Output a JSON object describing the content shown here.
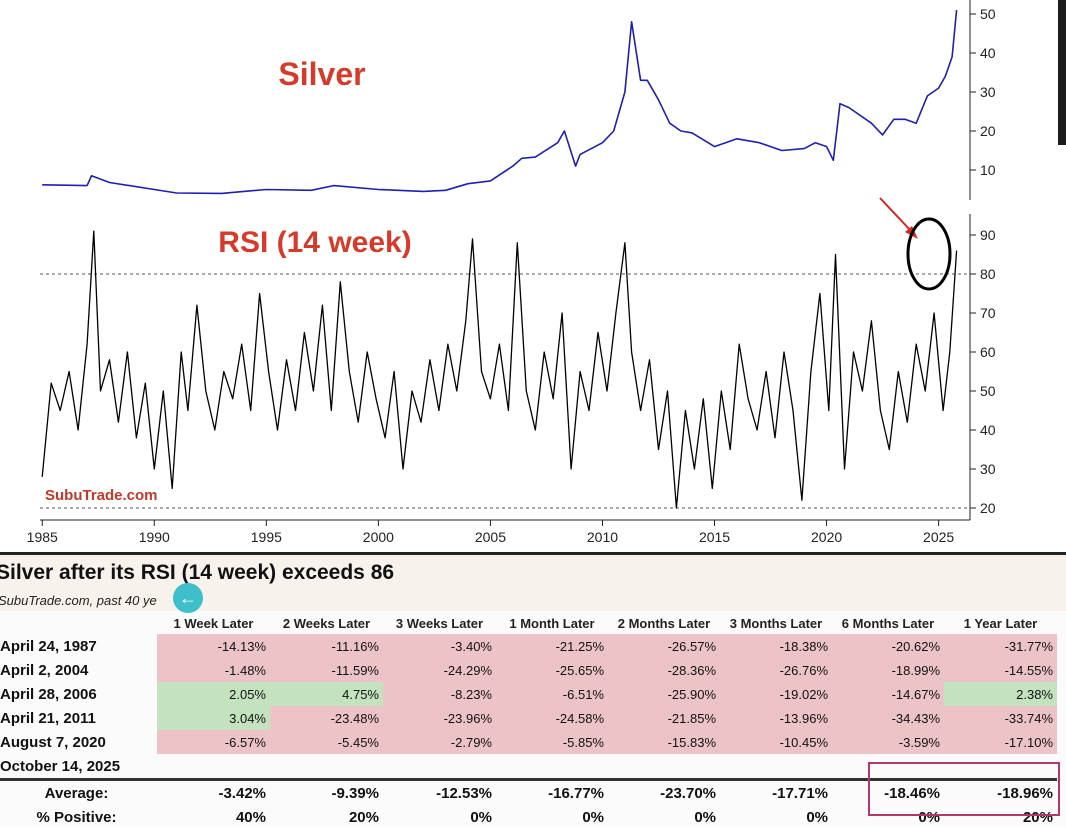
{
  "chart_data": [
    {
      "type": "line",
      "title": "Silver",
      "x_ticks": [
        "1985",
        "1990",
        "1995",
        "2000",
        "2005",
        "2010",
        "2015",
        "2020",
        "2025"
      ],
      "xlim": [
        1984.9,
        2026.4
      ],
      "ylim": [
        2,
        52
      ],
      "y_ticks": [
        10,
        20,
        30,
        40,
        50
      ],
      "series": [
        {
          "color": "#1f1fb0",
          "x": [
            1985,
            1987,
            1987.2,
            1988,
            1990,
            1991,
            1993,
            1995,
            1997,
            1998,
            2000,
            2002,
            2003,
            2004,
            2005,
            2006,
            2006.4,
            2007,
            2008,
            2008.3,
            2008.8,
            2009,
            2010,
            2010.5,
            2011,
            2011.3,
            2011.7,
            2012,
            2012.5,
            2013,
            2013.5,
            2014,
            2015,
            2016,
            2017,
            2018,
            2019,
            2019.5,
            2020,
            2020.3,
            2020.6,
            2021,
            2022,
            2022.5,
            2023,
            2023.5,
            2024,
            2024.5,
            2025,
            2025.3,
            2025.6,
            2025.8
          ],
          "y": [
            6.2,
            6,
            8.5,
            6.8,
            5,
            4.1,
            4,
            5,
            4.8,
            6,
            5,
            4.5,
            4.8,
            6.5,
            7.2,
            11,
            13,
            13.3,
            17,
            20,
            11,
            14,
            17,
            20,
            30,
            48,
            33,
            33,
            28,
            22,
            20,
            19.5,
            16,
            18,
            17,
            15,
            15.5,
            17,
            16,
            12.5,
            27,
            26,
            22,
            19,
            23,
            23,
            22,
            29,
            31,
            34,
            39,
            51
          ]
        }
      ]
    },
    {
      "type": "line",
      "title": "RSI (14 week)",
      "x_ticks": [
        "1985",
        "1990",
        "1995",
        "2000",
        "2005",
        "2010",
        "2015",
        "2020",
        "2025"
      ],
      "xlim": [
        1984.9,
        2026.4
      ],
      "ylim": [
        18,
        92
      ],
      "y_ticks": [
        20,
        30,
        40,
        50,
        60,
        70,
        80,
        90
      ],
      "reference_lines": [
        80,
        20
      ],
      "series": [
        {
          "color": "#000000",
          "x": [
            1985,
            1985.4,
            1985.8,
            1986.2,
            1986.6,
            1987,
            1987.3,
            1987.6,
            1988,
            1988.4,
            1988.8,
            1989.2,
            1989.6,
            1990,
            1990.4,
            1990.8,
            1991.2,
            1991.5,
            1991.9,
            1992.3,
            1992.7,
            1993.1,
            1993.5,
            1993.9,
            1994.3,
            1994.7,
            1995.1,
            1995.5,
            1995.9,
            1996.3,
            1996.7,
            1997.1,
            1997.5,
            1997.9,
            1998.3,
            1998.7,
            1999.1,
            1999.5,
            1999.9,
            2000.3,
            2000.7,
            2001.1,
            2001.5,
            2001.9,
            2002.3,
            2002.7,
            2003.1,
            2003.5,
            2003.9,
            2004.2,
            2004.6,
            2005,
            2005.4,
            2005.8,
            2006.2,
            2006.6,
            2007,
            2007.4,
            2007.8,
            2008.2,
            2008.6,
            2009,
            2009.4,
            2009.8,
            2010.2,
            2010.6,
            2011,
            2011.3,
            2011.7,
            2012.1,
            2012.5,
            2012.9,
            2013.3,
            2013.7,
            2014.1,
            2014.5,
            2014.9,
            2015.3,
            2015.7,
            2016.1,
            2016.5,
            2016.9,
            2017.3,
            2017.7,
            2018.1,
            2018.5,
            2018.9,
            2019.3,
            2019.7,
            2020.1,
            2020.4,
            2020.8,
            2021.2,
            2021.6,
            2022,
            2022.4,
            2022.8,
            2023.2,
            2023.6,
            2024,
            2024.4,
            2024.8,
            2025.2,
            2025.5,
            2025.8
          ],
          "y": [
            28,
            52,
            45,
            55,
            40,
            62,
            91,
            50,
            58,
            42,
            60,
            38,
            52,
            30,
            50,
            25,
            60,
            45,
            72,
            50,
            40,
            55,
            48,
            62,
            45,
            75,
            55,
            40,
            58,
            45,
            65,
            50,
            72,
            45,
            78,
            55,
            42,
            60,
            48,
            38,
            55,
            30,
            50,
            42,
            58,
            45,
            62,
            50,
            68,
            89,
            55,
            48,
            62,
            45,
            88,
            50,
            40,
            60,
            48,
            70,
            30,
            55,
            45,
            65,
            50,
            70,
            88,
            60,
            45,
            58,
            35,
            50,
            20,
            45,
            30,
            48,
            25,
            50,
            35,
            62,
            48,
            40,
            55,
            38,
            60,
            45,
            22,
            55,
            75,
            45,
            85,
            30,
            60,
            50,
            68,
            45,
            35,
            55,
            42,
            62,
            50,
            70,
            45,
            60,
            86
          ]
        }
      ]
    }
  ],
  "watermark": "SubuTrade.com",
  "table": {
    "title": "Silver after its RSI (14 week) exceeds 86",
    "subtitle": "SubuTrade.com, past 40 ye",
    "back_icon": "arrow-left-icon",
    "columns": [
      "1 Week Later",
      "2 Weeks Later",
      "3 Weeks Later",
      "1 Month Later",
      "2 Months Later",
      "3 Months Later",
      "6 Months Later",
      "1 Year Later"
    ],
    "rows": [
      {
        "date": "April 24, 1987",
        "values": [
          "-14.13%",
          "-11.16%",
          "-3.40%",
          "-21.25%",
          "-26.57%",
          "-18.38%",
          "-20.62%",
          "-31.77%"
        ]
      },
      {
        "date": "April 2, 2004",
        "values": [
          "-1.48%",
          "-11.59%",
          "-24.29%",
          "-25.65%",
          "-28.36%",
          "-26.76%",
          "-18.99%",
          "-14.55%"
        ]
      },
      {
        "date": "April 28, 2006",
        "values": [
          "2.05%",
          "4.75%",
          "-8.23%",
          "-6.51%",
          "-25.90%",
          "-19.02%",
          "-14.67%",
          "2.38%"
        ]
      },
      {
        "date": "April 21, 2011",
        "values": [
          "3.04%",
          "-23.48%",
          "-23.96%",
          "-24.58%",
          "-21.85%",
          "-13.96%",
          "-34.43%",
          "-33.74%"
        ]
      },
      {
        "date": "August 7, 2020",
        "values": [
          "-6.57%",
          "-5.45%",
          "-2.79%",
          "-5.85%",
          "-15.83%",
          "-10.45%",
          "-3.59%",
          "-17.10%"
        ]
      },
      {
        "date": "October 14, 2025",
        "values": [
          "",
          "",
          "",
          "",
          "",
          "",
          "",
          ""
        ]
      }
    ],
    "summary": [
      {
        "label": "Average:",
        "values": [
          "-3.42%",
          "-9.39%",
          "-12.53%",
          "-16.77%",
          "-23.70%",
          "-17.71%",
          "-18.46%",
          "-18.96%"
        ]
      },
      {
        "label": "% Positive:",
        "values": [
          "40%",
          "20%",
          "0%",
          "0%",
          "0%",
          "0%",
          "0%",
          "20%"
        ]
      }
    ],
    "colors": {
      "negative": "#ecc4c8",
      "positive": "#c3e3bf",
      "highlight": "#b0396c",
      "annotation": "#d62728"
    }
  }
}
